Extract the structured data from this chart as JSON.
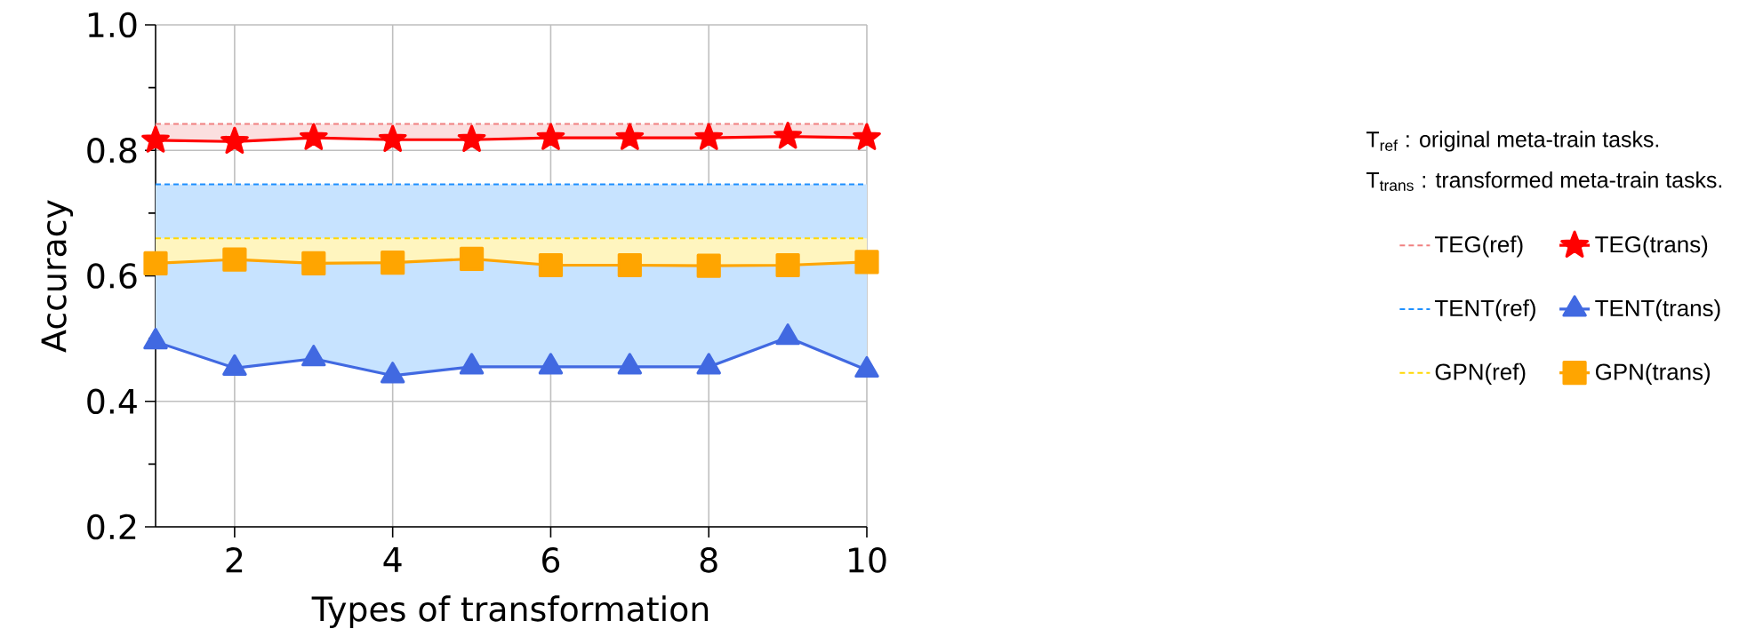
{
  "chart_data": {
    "type": "line",
    "xlabel": "Types of transformation",
    "ylabel": "Accuracy",
    "x": [
      1,
      2,
      3,
      4,
      5,
      6,
      7,
      8,
      9,
      10
    ],
    "xlim": [
      1,
      10
    ],
    "xticks": [
      2,
      4,
      6,
      8,
      10
    ],
    "ylim": [
      0.2,
      1.0
    ],
    "yticks": [
      {
        "value": 0.2,
        "label": "0.2"
      },
      {
        "value": 0.3,
        "label": null
      },
      {
        "value": 0.4,
        "label": "0.4"
      },
      {
        "value": 0.5,
        "label": null
      },
      {
        "value": 0.6,
        "label": "0.6"
      },
      {
        "value": 0.7,
        "label": null
      },
      {
        "value": 0.8,
        "label": "0.8"
      },
      {
        "value": 0.9,
        "label": null
      },
      {
        "value": 1.0,
        "label": "1.0"
      }
    ],
    "grid": true,
    "legend": "right",
    "annotations": [
      "T$_{ref}$ : original meta-train tasks.",
      "T$_{trans}$ : transformed meta-train tasks."
    ],
    "series": [
      {
        "name": "TEG(ref)",
        "color": "#f08080",
        "line_style": "dashed",
        "marker": "none",
        "values": [
          0.842,
          0.842,
          0.842,
          0.842,
          0.842,
          0.842,
          0.842,
          0.842,
          0.842,
          0.842
        ],
        "lower": [
          0.816,
          0.814,
          0.82,
          0.817,
          0.817,
          0.82,
          0.82,
          0.82,
          0.822,
          0.82
        ],
        "upper": [
          0.842,
          0.842,
          0.842,
          0.842,
          0.842,
          0.842,
          0.842,
          0.842,
          0.842,
          0.842
        ]
      },
      {
        "name": "TEG(trans)",
        "color": "#ff0000",
        "line_style": "solid",
        "marker": "star",
        "values": [
          0.816,
          0.814,
          0.82,
          0.817,
          0.817,
          0.82,
          0.82,
          0.82,
          0.822,
          0.82
        ]
      },
      {
        "name": "TENT(ref)",
        "color": "#1e90ff",
        "line_style": "dashed",
        "marker": "none",
        "values": [
          0.746,
          0.746,
          0.746,
          0.746,
          0.746,
          0.746,
          0.746,
          0.746,
          0.746,
          0.746
        ],
        "lower": [
          0.495,
          0.453,
          0.468,
          0.441,
          0.455,
          0.455,
          0.455,
          0.455,
          0.502,
          0.45
        ],
        "upper": [
          0.746,
          0.746,
          0.746,
          0.746,
          0.746,
          0.746,
          0.746,
          0.746,
          0.746,
          0.746
        ]
      },
      {
        "name": "TENT(trans)",
        "color": "#4169e1",
        "line_style": "solid",
        "marker": "triangle",
        "values": [
          0.495,
          0.453,
          0.468,
          0.441,
          0.455,
          0.455,
          0.455,
          0.455,
          0.502,
          0.45
        ]
      },
      {
        "name": "GPN(ref)",
        "color": "#ffd700",
        "line_style": "dashed",
        "marker": "none",
        "values": [
          0.66,
          0.66,
          0.66,
          0.66,
          0.66,
          0.66,
          0.66,
          0.66,
          0.66,
          0.66
        ],
        "lower": [
          0.62,
          0.626,
          0.62,
          0.621,
          0.627,
          0.617,
          0.617,
          0.616,
          0.617,
          0.622
        ],
        "upper": [
          0.66,
          0.66,
          0.66,
          0.66,
          0.66,
          0.66,
          0.66,
          0.66,
          0.66,
          0.66
        ]
      },
      {
        "name": "GPN(trans)",
        "color": "#ffa500",
        "line_style": "solid",
        "marker": "square",
        "values": [
          0.62,
          0.626,
          0.62,
          0.621,
          0.627,
          0.617,
          0.617,
          0.616,
          0.617,
          0.622
        ]
      }
    ]
  }
}
